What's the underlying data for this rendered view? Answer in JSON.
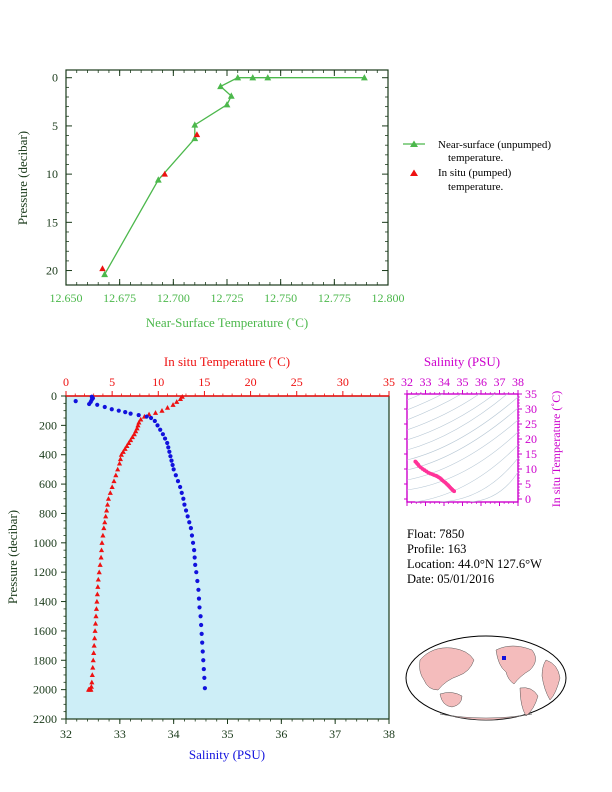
{
  "colors": {
    "green": "#4cb84c",
    "red": "#ee1111",
    "blue": "#1111dd",
    "magenta": "#cc00cc",
    "pink": "#ff3399",
    "plotbg": "#cdeef7",
    "axis_dark": "#1a3a1a"
  },
  "chart_data": [
    {
      "type": "line",
      "xlabel": "Near-Surface Temperature (˚C)",
      "ylabel": "Pressure (decibar)",
      "xlim": [
        12.65,
        12.8
      ],
      "ylim": [
        21.5,
        -0.8
      ],
      "xticks": [
        "12.650",
        "12.675",
        "12.700",
        "12.725",
        "12.750",
        "12.775",
        "12.800"
      ],
      "xtick_values": [
        12.65,
        12.675,
        12.7,
        12.725,
        12.75,
        12.775,
        12.8
      ],
      "yticks": [
        "0",
        "5",
        "10",
        "15",
        "20"
      ],
      "ytick_values": [
        0,
        5,
        10,
        15,
        20
      ],
      "legend_position": "right",
      "series": [
        {
          "name": "Near-surface (unpumped) temperature.",
          "name_lines": [
            "Near-surface (unpumped)",
            "temperature."
          ],
          "marker": "triangle",
          "color": "green",
          "x": [
            12.789,
            12.744,
            12.737,
            12.73,
            12.722,
            12.727,
            12.725,
            12.71,
            12.71,
            12.693,
            12.668
          ],
          "y": [
            0.0,
            0.0,
            0.0,
            0.0,
            0.9,
            1.9,
            2.8,
            4.9,
            6.3,
            10.6,
            20.4
          ]
        },
        {
          "name": "In situ (pumped) temperature.",
          "name_lines": [
            "In situ (pumped)",
            "temperature."
          ],
          "marker": "triangle",
          "color": "red",
          "x": [
            12.711,
            12.696,
            12.667
          ],
          "y": [
            5.9,
            10.0,
            19.8
          ]
        }
      ]
    },
    {
      "type": "scatter",
      "xlabel_top": "In situ Temperature (˚C)",
      "xlabel_bottom": "Salinity (PSU)",
      "ylabel": "Pressure (decibar)",
      "xlim_top": [
        0,
        35
      ],
      "xlim_bottom": [
        32,
        38
      ],
      "ylim": [
        2200,
        0
      ],
      "xticks_top": [
        "0",
        "5",
        "10",
        "15",
        "20",
        "25",
        "30",
        "35"
      ],
      "xtick_values_top": [
        0,
        5,
        10,
        15,
        20,
        25,
        30,
        35
      ],
      "xticks_bottom": [
        "32",
        "33",
        "34",
        "35",
        "36",
        "37",
        "38"
      ],
      "xtick_values_bottom": [
        32,
        33,
        34,
        35,
        36,
        37,
        38
      ],
      "yticks": [
        "0",
        "200",
        "400",
        "600",
        "800",
        "1000",
        "1200",
        "1400",
        "1600",
        "1800",
        "2000",
        "2200"
      ],
      "ytick_values": [
        0,
        200,
        400,
        600,
        800,
        1000,
        1200,
        1400,
        1600,
        1800,
        2000,
        2200
      ],
      "series": [
        {
          "color": "red",
          "marker": "triangle",
          "axis": "top",
          "x": [
            12.6,
            12.4,
            12.0,
            11.6,
            11.0,
            10.4,
            9.7,
            9.0,
            8.5,
            8.1,
            7.9,
            7.8,
            7.7,
            7.55,
            7.4,
            7.2,
            7.0,
            6.8,
            6.6,
            6.4,
            6.2,
            6.0,
            5.9,
            5.8,
            5.6,
            5.4,
            5.2,
            5.0,
            4.8,
            4.6,
            4.5,
            4.4,
            4.3,
            4.2,
            4.1,
            4.0,
            3.9,
            3.85,
            3.8,
            3.7,
            3.6,
            3.5,
            3.45,
            3.4,
            3.35,
            3.3,
            3.25,
            3.2,
            3.15,
            3.1,
            3.05,
            3.0,
            2.95,
            2.9,
            2.85,
            2.8,
            2.75,
            2.7,
            2.65,
            2.6,
            2.55,
            2.5,
            2.45
          ],
          "y": [
            5,
            20,
            40,
            60,
            80,
            100,
            115,
            125,
            140,
            160,
            180,
            200,
            220,
            240,
            260,
            280,
            300,
            320,
            340,
            360,
            380,
            400,
            430,
            460,
            500,
            540,
            580,
            620,
            660,
            700,
            740,
            780,
            820,
            860,
            900,
            950,
            1000,
            1050,
            1100,
            1150,
            1200,
            1250,
            1300,
            1350,
            1400,
            1450,
            1500,
            1550,
            1600,
            1650,
            1700,
            1750,
            1800,
            1850,
            1900,
            1950,
            1980,
            2000,
            2000,
            2000,
            2000,
            2000,
            2000
          ]
        },
        {
          "color": "blue",
          "marker": "dot",
          "axis": "bottom",
          "x": [
            32.48,
            32.5,
            32.48,
            32.46,
            32.43,
            32.18,
            32.58,
            32.72,
            32.85,
            32.98,
            33.1,
            33.2,
            33.35,
            33.5,
            33.58,
            33.65,
            33.7,
            33.75,
            33.8,
            33.84,
            33.88,
            33.9,
            33.92,
            33.94,
            33.96,
            33.98,
            34.0,
            34.04,
            34.08,
            34.12,
            34.15,
            34.18,
            34.2,
            34.23,
            34.26,
            34.29,
            34.32,
            34.34,
            34.36,
            34.38,
            34.39,
            34.4,
            34.42,
            34.44,
            34.46,
            34.47,
            34.48,
            34.5,
            34.51,
            34.52,
            34.53,
            34.54,
            34.55,
            34.56,
            34.57,
            34.58
          ],
          "y": [
            5,
            15,
            25,
            40,
            55,
            35,
            60,
            75,
            90,
            100,
            110,
            120,
            130,
            140,
            150,
            170,
            200,
            230,
            260,
            290,
            320,
            350,
            380,
            410,
            440,
            470,
            500,
            540,
            580,
            620,
            660,
            700,
            740,
            780,
            820,
            860,
            900,
            950,
            1000,
            1050,
            1100,
            1150,
            1200,
            1260,
            1320,
            1380,
            1440,
            1500,
            1560,
            1620,
            1680,
            1740,
            1800,
            1860,
            1920,
            1990
          ]
        }
      ]
    },
    {
      "type": "scatter",
      "xlabel": "Salinity (PSU)",
      "ylabel": "In situ Temperature (˚C)",
      "xlim": [
        32,
        38
      ],
      "ylim": [
        -1,
        35
      ],
      "xticks": [
        "32",
        "33",
        "34",
        "35",
        "36",
        "37",
        "38"
      ],
      "xtick_values": [
        32,
        33,
        34,
        35,
        36,
        37,
        38
      ],
      "yticks": [
        "0",
        "5",
        "10",
        "15",
        "20",
        "25",
        "30",
        "35"
      ],
      "ytick_values": [
        0,
        5,
        10,
        15,
        20,
        25,
        30,
        35
      ],
      "series": [
        {
          "color": "pink",
          "marker": "dot",
          "x": [
            32.45,
            32.5,
            32.55,
            32.6,
            32.65,
            32.75,
            32.85,
            32.95,
            33.05,
            33.15,
            33.25,
            33.35,
            33.45,
            33.55,
            33.62,
            33.7,
            33.78,
            33.85,
            33.92,
            34.0,
            34.08,
            34.15,
            34.22,
            34.28,
            34.34,
            34.4,
            34.45,
            34.5,
            34.55
          ],
          "y": [
            12.5,
            12.2,
            11.8,
            11.5,
            11.0,
            10.5,
            10.0,
            9.6,
            9.2,
            8.8,
            8.5,
            8.3,
            8.0,
            7.8,
            7.6,
            7.3,
            7.0,
            6.6,
            6.2,
            5.8,
            5.4,
            5.0,
            4.6,
            4.2,
            3.8,
            3.4,
            3.1,
            2.8,
            2.6
          ]
        }
      ]
    }
  ],
  "info": {
    "float": "Float:  7850",
    "profile": "Profile:  163",
    "location": "Location:  44.0°N  127.6°W",
    "date": "Date:  05/01/2016"
  }
}
